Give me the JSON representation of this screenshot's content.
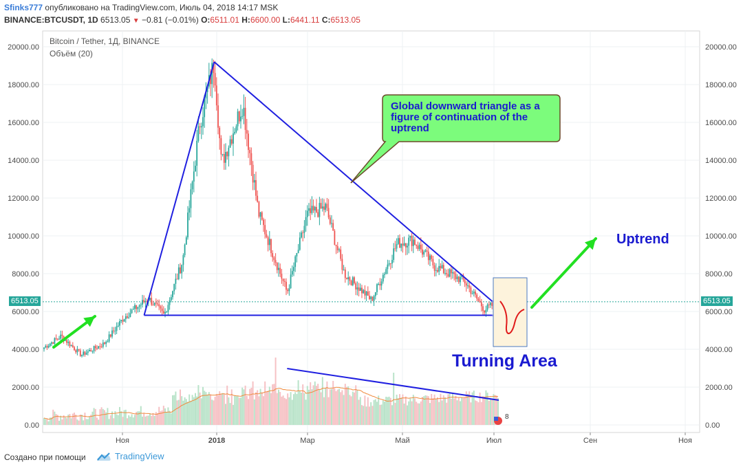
{
  "header": {
    "author": "Sfinks777",
    "published_text": "опубликовано на TradingView.com, Июль 04, 2018 14:17 MSK",
    "symbol": "BINANCE:BTCUSDT, 1D",
    "last_price": "6513.05",
    "change": "−0.81 (−0.01%)",
    "o_label": "O:",
    "o_value": "6511.01",
    "h_label": "H:",
    "h_value": "6600.00",
    "l_label": "L:",
    "l_value": "6441.11",
    "c_label": "C:",
    "c_value": "6513.05"
  },
  "chart_title": "Bitcoin / Tether, 1Д, BINANCE",
  "volume_label": "Объём (20)",
  "price_tag": "6513.05",
  "annotations": {
    "callout": "Global downward triangle as a figure of continuation of the uptrend",
    "uptrend": "Uptrend",
    "turning_area": "Turning Area"
  },
  "footer": {
    "created_with": "Создано при помощи",
    "brand": "TradingView"
  },
  "colors": {
    "up": "#26a69a",
    "down": "#ef5350",
    "annotation_blue": "#1a1ad0",
    "arrow_green": "#22e022",
    "callout_fill": "#7cfc7c",
    "volume_ma": "#f08a3c",
    "turning_box": "#fdf3dc"
  },
  "chart_data": {
    "type": "candlestick",
    "title": "Bitcoin / Tether, 1Д, BINANCE",
    "price_axis_ticks": [
      "20000.00",
      "18000.00",
      "16000.00",
      "14000.00",
      "12000.00",
      "10000.00",
      "8000.00",
      "6000.00",
      "4000.00",
      "2000.00",
      "0.00"
    ],
    "time_axis_labels": [
      "Ноя",
      "2018",
      "Мар",
      "Май",
      "Июл",
      "Сен",
      "Ноя"
    ],
    "ylim": [
      0,
      20000
    ],
    "current_price": 6513.05,
    "price_path": [
      {
        "date": "2017-08-20",
        "close": 4100
      },
      {
        "date": "2017-09-01",
        "close": 4700
      },
      {
        "date": "2017-09-15",
        "close": 3700
      },
      {
        "date": "2017-10-01",
        "close": 4300
      },
      {
        "date": "2017-10-15",
        "close": 5700
      },
      {
        "date": "2017-11-01",
        "close": 6700
      },
      {
        "date": "2017-11-12",
        "close": 5800
      },
      {
        "date": "2017-11-25",
        "close": 8700
      },
      {
        "date": "2017-12-07",
        "close": 16000
      },
      {
        "date": "2017-12-17",
        "close": 19200
      },
      {
        "date": "2017-12-22",
        "close": 13800
      },
      {
        "date": "2018-01-06",
        "close": 17000
      },
      {
        "date": "2018-01-17",
        "close": 11200
      },
      {
        "date": "2018-02-06",
        "close": 7000
      },
      {
        "date": "2018-02-20",
        "close": 11100
      },
      {
        "date": "2018-03-05",
        "close": 11500
      },
      {
        "date": "2018-03-18",
        "close": 8000
      },
      {
        "date": "2018-04-06",
        "close": 6600
      },
      {
        "date": "2018-04-24",
        "close": 9600
      },
      {
        "date": "2018-05-05",
        "close": 9800
      },
      {
        "date": "2018-05-20",
        "close": 8400
      },
      {
        "date": "2018-06-10",
        "close": 7600
      },
      {
        "date": "2018-06-24",
        "close": 6100
      },
      {
        "date": "2018-07-04",
        "close": 6513
      }
    ],
    "volume_ma_ylim": [
      0,
      4000
    ],
    "trendlines": [
      {
        "name": "rising leg",
        "from": {
          "date": "2017-10-29",
          "price": 5800
        },
        "to": {
          "date": "2017-12-17",
          "price": 19200
        }
      },
      {
        "name": "descending leg",
        "from": {
          "date": "2017-12-17",
          "price": 19200
        },
        "to": {
          "date": "2018-06-30",
          "price": 6500
        }
      },
      {
        "name": "support",
        "from": {
          "date": "2017-10-29",
          "price": 5800
        },
        "to": {
          "date": "2018-07-04",
          "price": 5800
        }
      },
      {
        "name": "volume trend",
        "from": {
          "date": "2018-02-06",
          "volume": 4100
        },
        "to": {
          "date": "2018-07-04",
          "volume": 1800
        }
      }
    ],
    "grid": true,
    "legend": "top-left"
  }
}
